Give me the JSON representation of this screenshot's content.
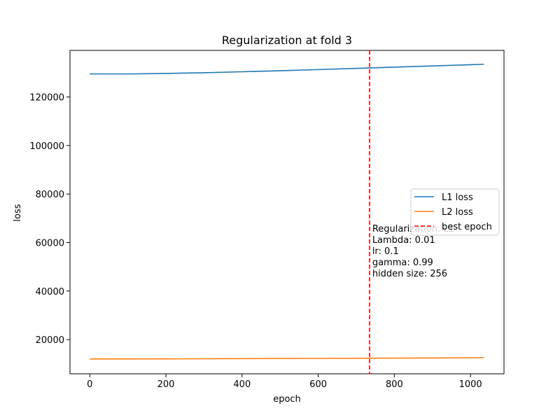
{
  "chart_data": {
    "type": "line",
    "title": "Regularization at fold 3",
    "xlabel": "epoch",
    "ylabel": "loss",
    "xlim": [
      -52,
      1088
    ],
    "ylim": [
      5900,
      139200
    ],
    "xticks": [
      0,
      200,
      400,
      600,
      800,
      1000
    ],
    "yticks": [
      20000,
      40000,
      60000,
      80000,
      100000,
      120000
    ],
    "grid": false,
    "legend_position": "center-right",
    "series": [
      {
        "name": "L1 loss",
        "color": "#1f77b4",
        "x": [
          0,
          100,
          200,
          300,
          400,
          500,
          600,
          700,
          800,
          900,
          1000,
          1035
        ],
        "y": [
          129500,
          129500,
          129700,
          130000,
          130400,
          130800,
          131300,
          131800,
          132300,
          132800,
          133300,
          133500
        ]
      },
      {
        "name": "L2 loss",
        "color": "#ff7f0e",
        "x": [
          0,
          200,
          400,
          600,
          800,
          1000,
          1035
        ],
        "y": [
          12000,
          12050,
          12150,
          12250,
          12380,
          12500,
          12550
        ]
      }
    ],
    "vlines": [
      {
        "name": "best epoch",
        "x": 735,
        "color": "#ff0000",
        "style": "dashed"
      }
    ],
    "annotation": {
      "x": 742,
      "y": 64500,
      "lines": [
        "Regularization: L1",
        "Lambda: 0.01",
        "lr: 0.1",
        "gamma: 0.99",
        "hidden size: 256"
      ]
    }
  }
}
